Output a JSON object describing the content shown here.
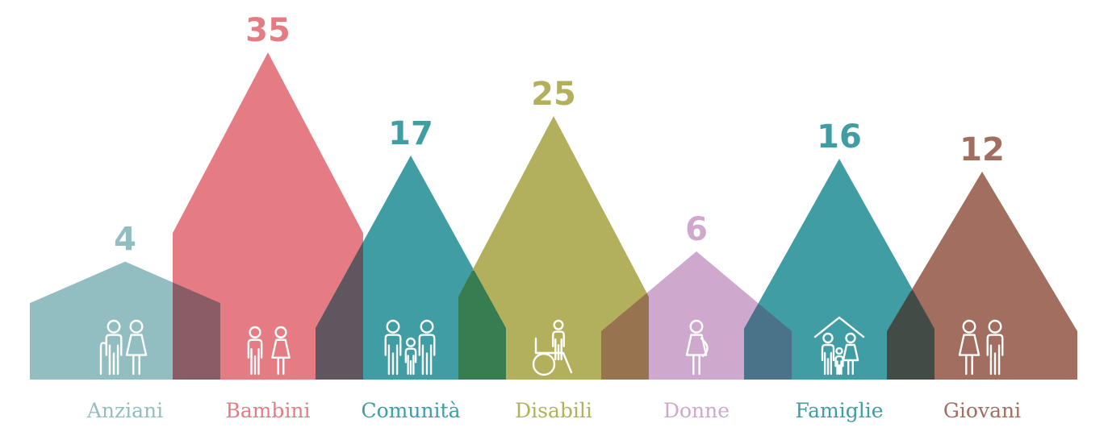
{
  "chart_data": {
    "type": "area",
    "title": "",
    "xlabel": "",
    "ylabel": "",
    "grid": false,
    "legend": "none",
    "ylim": [
      0,
      35
    ],
    "categories": [
      "Anziani",
      "Bambini",
      "Comunità",
      "Disabili",
      "Donne",
      "Famiglie",
      "Giovani"
    ],
    "values": [
      4,
      35,
      17,
      25,
      6,
      16,
      12
    ],
    "colors": [
      "#93bec1",
      "#e57c84",
      "#3f9da3",
      "#b3b05d",
      "#cfa9cd",
      "#3f9da3",
      "#a16e5f"
    ],
    "overlap_colors": [
      "#8a5c66",
      "#5f5660",
      "#377d51",
      "#977350",
      "#4a7289",
      "#434b46"
    ],
    "icons": [
      "elderly-couple-icon",
      "children-icon",
      "community-icon",
      "wheelchair-user-icon",
      "pregnant-woman-icon",
      "family-home-icon",
      "young-couple-icon"
    ]
  }
}
